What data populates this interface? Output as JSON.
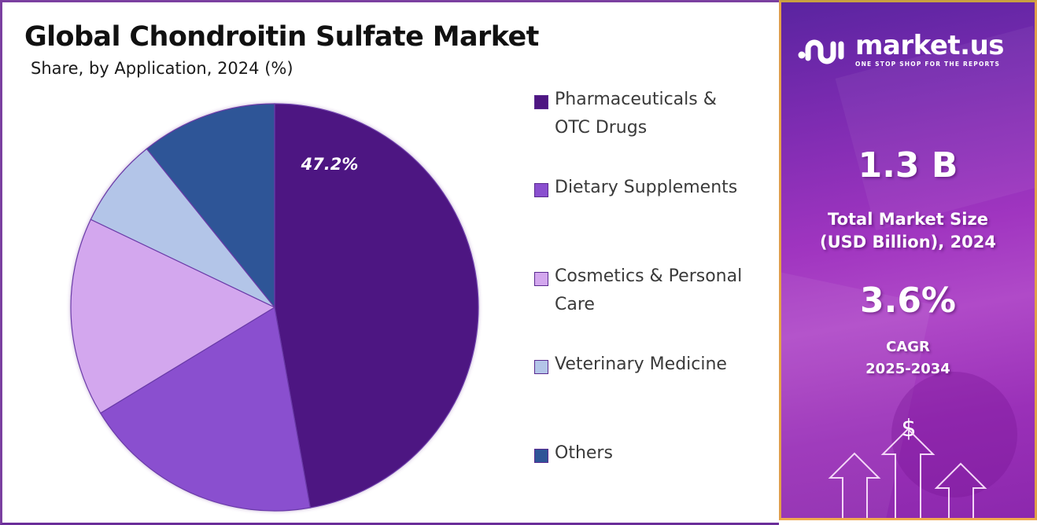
{
  "header": {
    "title": "Global Chondroitin Sulfate Market",
    "subtitle": "Share, by Application, 2024 (%)"
  },
  "pie": {
    "highlight_label": "47.2%"
  },
  "legend": {
    "items": [
      {
        "label": "Pharmaceuticals & OTC Drugs",
        "color": "#4e1682"
      },
      {
        "label": "Dietary Supplements",
        "color": "#8a4fcf"
      },
      {
        "label": "Cosmetics & Personal Care",
        "color": "#d3a7ee"
      },
      {
        "label": "Veterinary Medicine",
        "color": "#b3c5e8"
      },
      {
        "label": "Others",
        "color": "#2e5597"
      }
    ]
  },
  "sidebar": {
    "brand_name": "market.us",
    "brand_tagline": "ONE STOP SHOP FOR THE REPORTS",
    "market_size_value": "1.3  B",
    "market_size_label_line1": "Total Market Size",
    "market_size_label_line2": "(USD Billion), 2024",
    "cagr_value": "3.6%",
    "cagr_label_line1": "CAGR",
    "cagr_label_line2": "2025-2034",
    "currency_symbol": "$"
  },
  "colors": {
    "accent_purple": "#4e1682",
    "panel_border": "#e1a04a",
    "frame_border": "#7b3fa0"
  },
  "chart_data": {
    "type": "pie",
    "title": "Global Chondroitin Sulfate Market",
    "subtitle": "Share, by Application, 2024 (%)",
    "categories": [
      "Pharmaceuticals & OTC Drugs",
      "Dietary Supplements",
      "Cosmetics & Personal Care",
      "Veterinary Medicine",
      "Others"
    ],
    "values": [
      47.2,
      19.1,
      15.8,
      7.1,
      10.8
    ],
    "labeled_values": {
      "Pharmaceuticals & OTC Drugs": 47.2
    },
    "colors": [
      "#4e1682",
      "#8a4fcf",
      "#d3a7ee",
      "#b3c5e8",
      "#2e5597"
    ],
    "legend_position": "right",
    "start_angle": "12 o'clock, clockwise",
    "unit": "%"
  }
}
